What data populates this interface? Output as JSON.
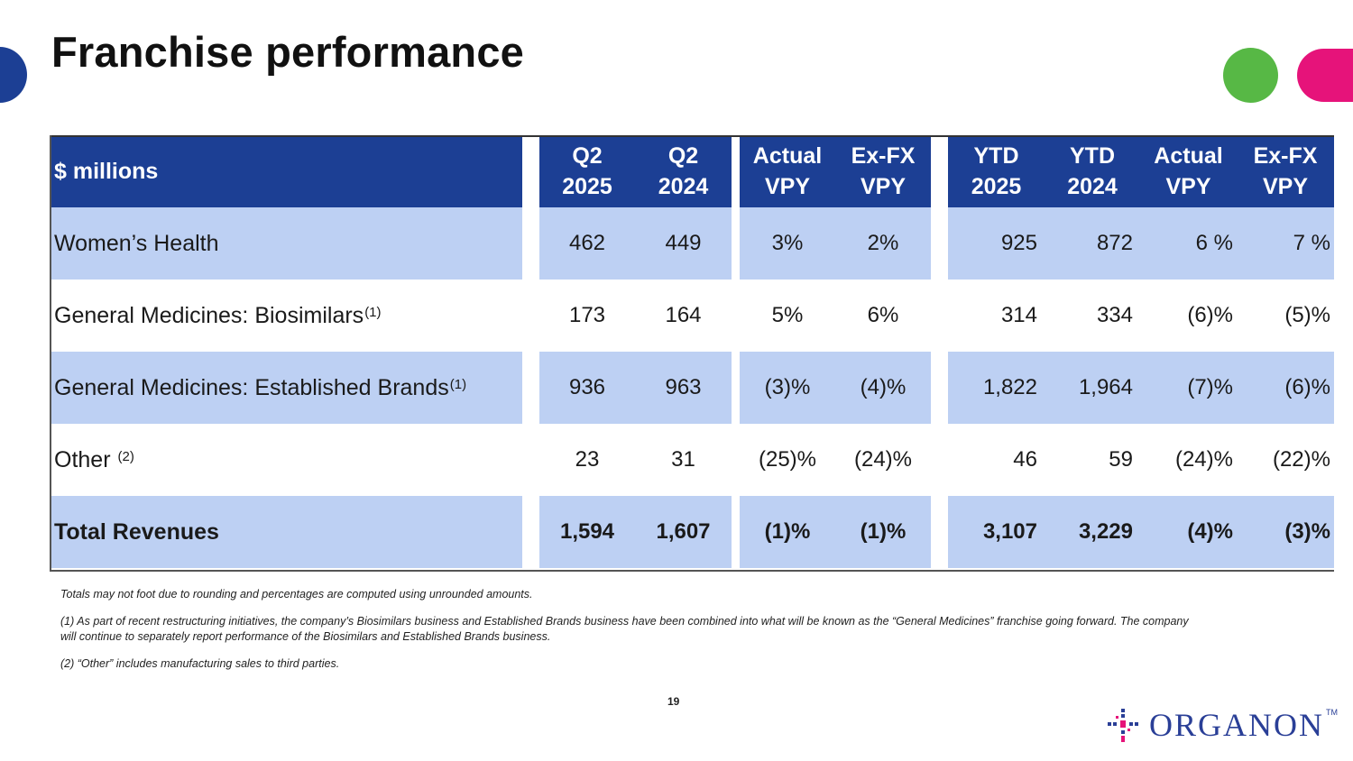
{
  "title": "Franchise performance",
  "header": {
    "label": "$ millions",
    "cols": [
      {
        "l1": "Q2",
        "l2": "2025"
      },
      {
        "l1": "Q2",
        "l2": "2024"
      },
      {
        "l1": "Actual",
        "l2": "VPY"
      },
      {
        "l1": "Ex-FX",
        "l2": "VPY"
      },
      {
        "l1": "YTD",
        "l2": "2025"
      },
      {
        "l1": "YTD",
        "l2": "2024"
      },
      {
        "l1": "Actual",
        "l2": "VPY"
      },
      {
        "l1": "Ex-FX",
        "l2": "VPY"
      }
    ]
  },
  "rows": [
    {
      "label": "Women’s Health",
      "sup": "",
      "values": [
        "462",
        "449",
        "3%",
        "2%",
        "925",
        "872",
        "6 %",
        "7 %"
      ]
    },
    {
      "label": "General Medicines: Biosimilars",
      "sup": "(1)",
      "values": [
        "173",
        "164",
        "5%",
        "6%",
        "314",
        "334",
        "(6)%",
        "(5)%"
      ]
    },
    {
      "label": "General Medicines: Established Brands",
      "sup": "(1)",
      "values": [
        "936",
        "963",
        "(3)%",
        "(4)%",
        "1,822",
        "1,964",
        "(7)%",
        "(6)%"
      ]
    },
    {
      "label": "Other",
      "sup": "(2)",
      "values": [
        "23",
        "31",
        "(25)%",
        "(24)%",
        "46",
        "59",
        "(24)%",
        "(22)%"
      ]
    },
    {
      "label": "Total Revenues",
      "sup": "",
      "values": [
        "1,594",
        "1,607",
        "(1)%",
        "(1)%",
        "3,107",
        "3,229",
        "(4)%",
        "(3)%"
      ]
    }
  ],
  "notes": [
    "Totals may not foot due to rounding and percentages are computed using unrounded amounts.",
    "(1) As part of recent restructuring initiatives, the company’s Biosimilars business and Established Brands business have been combined into what will be known as the “General Medicines” franchise going forward. The company will continue to separately report performance of the Biosimilars and Established Brands business.",
    "(2) “Other” includes manufacturing sales to third parties."
  ],
  "page_number": "19",
  "logo": {
    "text": "ORGANON",
    "tm": "TM"
  },
  "colors": {
    "header_blue": "#1c3f94",
    "band_blue": "#bdd0f3",
    "accent_green": "#57b845",
    "accent_pink": "#e6137a"
  }
}
